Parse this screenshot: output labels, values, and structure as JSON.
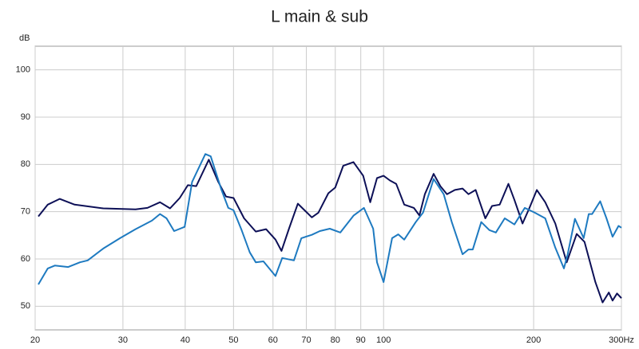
{
  "chart_data": {
    "type": "line",
    "title": "L main & sub",
    "y_label": "dB",
    "xscale": "log",
    "grid": true,
    "xlim": [
      20,
      300
    ],
    "ylim": [
      45,
      105
    ],
    "xticks": [
      20,
      30,
      40,
      50,
      60,
      70,
      80,
      90,
      100,
      200,
      {
        "value": 300,
        "label": "300Hz"
      }
    ],
    "yticks": [
      50,
      60,
      70,
      80,
      90,
      100
    ],
    "series": [
      {
        "color": "#0d1057",
        "x": [
          20.3,
          21.2,
          22.4,
          24,
          27.4,
          31.8,
          33.6,
          35.6,
          37.3,
          39,
          40.5,
          42.1,
          44.6,
          46.6,
          48.3,
          50,
          52.5,
          55.4,
          58.1,
          60.7,
          62.4,
          64.6,
          67.3,
          71.8,
          74,
          77.5,
          80,
          83,
          87,
          91,
          94,
          97,
          100,
          103,
          106,
          110,
          115,
          118,
          121,
          126,
          130,
          134,
          139,
          144,
          148,
          153,
          160,
          165,
          171,
          178,
          183,
          190,
          196,
          203,
          211,
          221,
          233,
          244,
          253,
          266,
          275,
          283,
          288,
          294,
          300
        ],
        "values": [
          69,
          71.5,
          72.7,
          71.5,
          70.7,
          70.5,
          70.8,
          72,
          70.7,
          72.9,
          75.6,
          75.4,
          81,
          76.3,
          73.2,
          72.9,
          68.6,
          65.8,
          66.3,
          64.1,
          61.7,
          66.4,
          71.7,
          68.8,
          69.8,
          73.9,
          75.1,
          79.7,
          80.5,
          77.6,
          72,
          77.1,
          77.6,
          76.6,
          75.9,
          71.5,
          70.8,
          69.2,
          73.7,
          78,
          75.4,
          73.7,
          74.6,
          74.9,
          73.7,
          74.6,
          68.6,
          71.2,
          71.5,
          75.9,
          72.5,
          67.5,
          70.7,
          74.6,
          72,
          67.5,
          59.3,
          65.3,
          63.6,
          55.1,
          50.8,
          52.9,
          51.2,
          52.7,
          51.7
        ]
      },
      {
        "color": "#1e7ac0",
        "x": [
          20.3,
          21.2,
          21.9,
          23.3,
          24.6,
          25.5,
          27.4,
          29.6,
          31.8,
          34.3,
          35.6,
          36.7,
          38,
          39.9,
          41.3,
          43.9,
          45,
          47.3,
          48.8,
          50,
          51.9,
          53.9,
          55.4,
          57.4,
          60.7,
          62.6,
          66.1,
          68.4,
          71.8,
          74.5,
          78,
          81.9,
          87.1,
          91.3,
          95.3,
          97,
          100,
          104,
          107,
          110,
          116,
          120,
          126,
          132,
          137,
          144,
          148,
          151,
          157,
          163,
          168,
          175,
          183,
          192,
          201,
          211,
          221,
          230,
          234,
          242,
          252,
          258,
          262,
          272,
          280,
          288,
          296,
          300
        ],
        "values": [
          54.6,
          58,
          58.6,
          58.3,
          59.3,
          59.7,
          62.2,
          64.4,
          66.3,
          68.1,
          69.5,
          68.6,
          65.9,
          66.8,
          76.3,
          82.2,
          81.7,
          74.6,
          70.8,
          70.3,
          66.1,
          61.4,
          59.3,
          59.5,
          56.4,
          60.2,
          59.7,
          64.4,
          65.1,
          65.9,
          66.4,
          65.6,
          69.2,
          70.8,
          66.4,
          59.3,
          55.1,
          64.4,
          65.2,
          64.1,
          67.8,
          69.8,
          76.9,
          73.7,
          67.8,
          61,
          62,
          62,
          67.8,
          66.1,
          65.6,
          68.6,
          67.3,
          70.8,
          69.8,
          68.6,
          62.4,
          58,
          61,
          68.5,
          64.4,
          69.5,
          69.5,
          72.2,
          68.6,
          64.7,
          67,
          66.6
        ]
      }
    ]
  }
}
